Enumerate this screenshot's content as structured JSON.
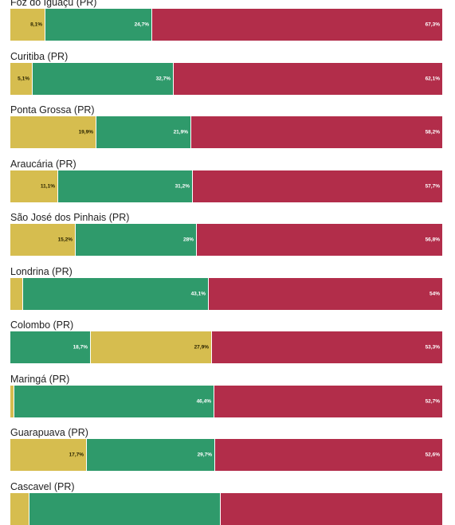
{
  "chart_data": {
    "type": "bar",
    "orientation": "horizontal",
    "stacked": true,
    "percent": true,
    "colors": {
      "yellow": "#d6bd4f",
      "green": "#2f9a6b",
      "red": "#b22d4a"
    },
    "rows": [
      {
        "label": "Foz do Iguaçu (PR)",
        "segments": [
          {
            "color": "yellow",
            "value": 8.1,
            "text": "8,1%"
          },
          {
            "color": "green",
            "value": 24.7,
            "text": "24,7%"
          },
          {
            "color": "red",
            "value": 67.3,
            "text": "67,3%"
          }
        ]
      },
      {
        "label": "Curitiba (PR)",
        "segments": [
          {
            "color": "yellow",
            "value": 5.1,
            "text": "5,1%"
          },
          {
            "color": "green",
            "value": 32.7,
            "text": "32,7%"
          },
          {
            "color": "red",
            "value": 62.1,
            "text": "62,1%"
          }
        ]
      },
      {
        "label": "Ponta Grossa (PR)",
        "segments": [
          {
            "color": "yellow",
            "value": 19.9,
            "text": "19,9%"
          },
          {
            "color": "green",
            "value": 21.9,
            "text": "21,9%"
          },
          {
            "color": "red",
            "value": 58.2,
            "text": "58,2%"
          }
        ]
      },
      {
        "label": "Araucária (PR)",
        "segments": [
          {
            "color": "yellow",
            "value": 11.1,
            "text": "11,1%"
          },
          {
            "color": "green",
            "value": 31.2,
            "text": "31,2%"
          },
          {
            "color": "red",
            "value": 57.7,
            "text": "57,7%"
          }
        ]
      },
      {
        "label": "São José dos Pinhais (PR)",
        "segments": [
          {
            "color": "yellow",
            "value": 15.2,
            "text": "15,2%"
          },
          {
            "color": "green",
            "value": 28,
            "text": "28%"
          },
          {
            "color": "red",
            "value": 56.8,
            "text": "56,8%"
          }
        ]
      },
      {
        "label": "Londrina (PR)",
        "segments": [
          {
            "color": "yellow",
            "value": 2.9,
            "text": ""
          },
          {
            "color": "green",
            "value": 43.1,
            "text": "43,1%"
          },
          {
            "color": "red",
            "value": 54,
            "text": "54%"
          }
        ]
      },
      {
        "label": "Colombo (PR)",
        "segments": [
          {
            "color": "green",
            "value": 18.7,
            "text": "18,7%"
          },
          {
            "color": "yellow",
            "value": 27.9,
            "text": "27,9%"
          },
          {
            "color": "red",
            "value": 53.3,
            "text": "53,3%"
          }
        ]
      },
      {
        "label": "Maringá (PR)",
        "segments": [
          {
            "color": "yellow",
            "value": 0.9,
            "text": ""
          },
          {
            "color": "green",
            "value": 46.4,
            "text": "46,4%"
          },
          {
            "color": "red",
            "value": 52.7,
            "text": "52,7%"
          }
        ]
      },
      {
        "label": "Guarapuava (PR)",
        "segments": [
          {
            "color": "yellow",
            "value": 17.7,
            "text": "17,7%"
          },
          {
            "color": "green",
            "value": 29.7,
            "text": "29,7%"
          },
          {
            "color": "red",
            "value": 52.6,
            "text": "52,6%"
          }
        ]
      },
      {
        "label": "Cascavel (PR)",
        "segments": [
          {
            "color": "yellow",
            "value": 4.5,
            "text": ""
          },
          {
            "color": "green",
            "value": 44.3,
            "text": ""
          },
          {
            "color": "red",
            "value": 51.2,
            "text": ""
          }
        ]
      }
    ]
  }
}
